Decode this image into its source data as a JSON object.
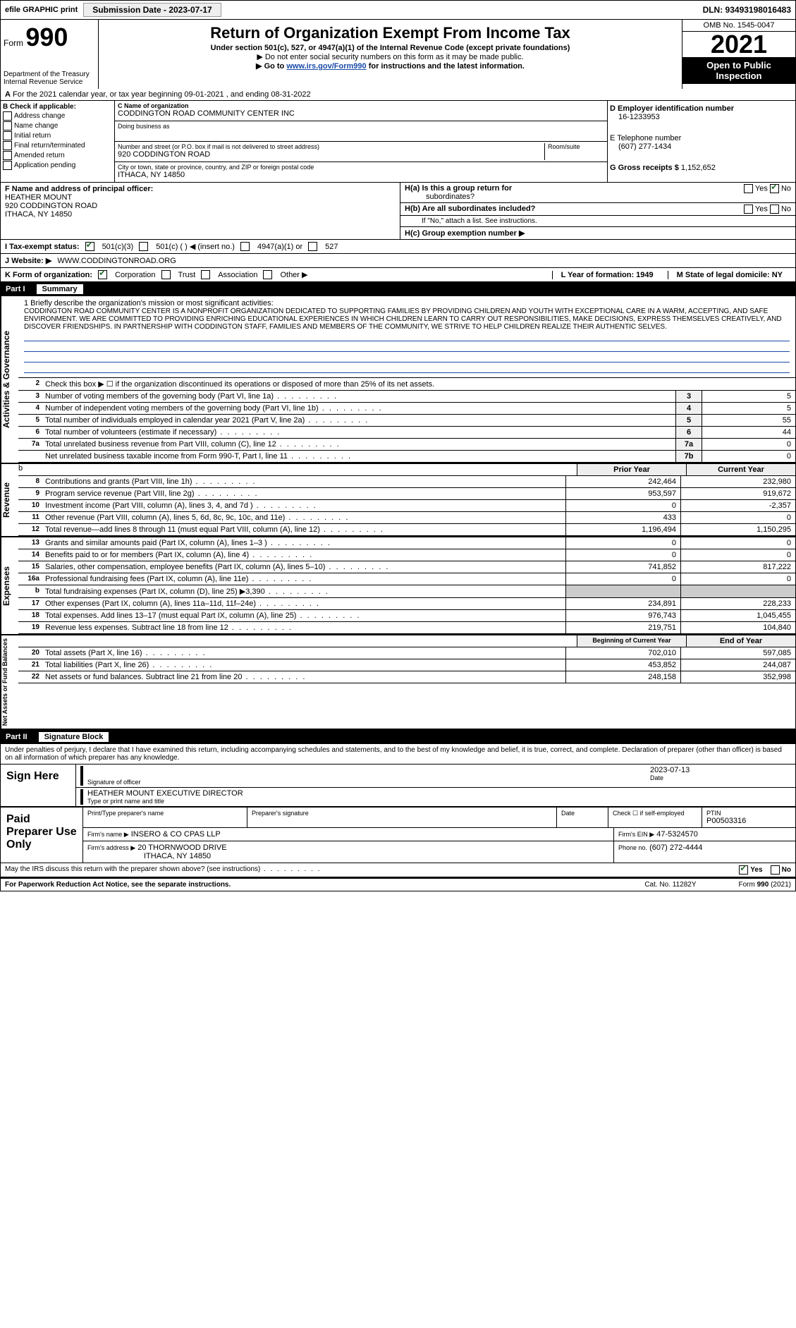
{
  "header": {
    "efile": "efile GRAPHIC print",
    "submission_btn": "Submission Date - 2023-07-17",
    "dln": "DLN: 93493198016483"
  },
  "top": {
    "form_label": "Form",
    "form_number": "990",
    "title": "Return of Organization Exempt From Income Tax",
    "subtitle1": "Under section 501(c), 527, or 4947(a)(1) of the Internal Revenue Code (except private foundations)",
    "subtitle2": "▶ Do not enter social security numbers on this form as it may be made public.",
    "subtitle3_pre": "▶ Go to ",
    "subtitle3_link": "www.irs.gov/Form990",
    "subtitle3_post": " for instructions and the latest information.",
    "dept": "Department of the Treasury",
    "irs": "Internal Revenue Service",
    "omb": "OMB No. 1545-0047",
    "year": "2021",
    "inspection": "Open to Public Inspection"
  },
  "sectionA": {
    "label": "A",
    "text": "For the 2021 calendar year, or tax year beginning 09-01-2021    , and ending 08-31-2022"
  },
  "sectionB": {
    "label": "B Check if applicable:",
    "items": [
      "Address change",
      "Name change",
      "Initial return",
      "Final return/terminated",
      "Amended return",
      "Application pending"
    ]
  },
  "sectionC": {
    "label": "C Name of organization",
    "org_name": "CODDINGTON ROAD COMMUNITY CENTER INC",
    "dba_label": "Doing business as",
    "addr_label": "Number and street (or P.O. box if mail is not delivered to street address)",
    "room_label": "Room/suite",
    "address": "920 CODDINGTON ROAD",
    "city_label": "City or town, state or province, country, and ZIP or foreign postal code",
    "city": "ITHACA, NY  14850"
  },
  "sectionD": {
    "label": "D Employer identification number",
    "ein": "16-1233953",
    "e_label": "E Telephone number",
    "phone": "(607) 277-1434",
    "g_label": "G Gross receipts $",
    "gross": "1,152,652"
  },
  "sectionF": {
    "label": "F  Name and address of principal officer:",
    "name": "HEATHER MOUNT",
    "addr1": "920 CODDINGTON ROAD",
    "addr2": "ITHACA, NY  14850"
  },
  "sectionH": {
    "ha1": "H(a)  Is this a group return for",
    "ha2": "subordinates?",
    "hb": "H(b)  Are all subordinates included?",
    "hb_note": "If \"No,\" attach a list. See instructions.",
    "hc": "H(c)  Group exemption number ▶",
    "yes": "Yes",
    "no": "No"
  },
  "sectionI": {
    "label": "I    Tax-exempt status:",
    "opt1": "501(c)(3)",
    "opt2": "501(c) (  ) ◀ (insert no.)",
    "opt3": "4947(a)(1) or",
    "opt4": "527"
  },
  "sectionJ": {
    "label": "J   Website: ▶",
    "value": " WWW.CODDINGTONROAD.ORG"
  },
  "sectionK": {
    "label": "K Form of organization:",
    "corp": "Corporation",
    "trust": "Trust",
    "assoc": "Association",
    "other": "Other ▶"
  },
  "sectionL": {
    "label": "L Year of formation: 1949"
  },
  "sectionM": {
    "label": "M State of legal domicile: NY"
  },
  "part1": {
    "label": "Part I",
    "title": "Summary"
  },
  "summary": {
    "line1_label": "1   Briefly describe the organization's mission or most significant activities:",
    "mission": "CODDINGTON ROAD COMMUNITY CENTER IS A NONPROFIT ORGANIZATION DEDICATED TO SUPPORTING FAMILIES BY PROVIDING CHILDREN AND YOUTH WITH EXCEPTIONAL CARE IN A WARM, ACCEPTING, AND SAFE ENVIRONMENT. WE ARE COMMITTED TO PROVIDING ENRICHING EDUCATIONAL EXPERIENCES IN WHICH CHILDREN LEARN TO CARRY OUT RESPONSIBILITIES, MAKE DECISIONS, EXPRESS THEMSELVES CREATIVELY, AND DISCOVER FRIENDSHIPS. IN PARTNERSHIP WITH CODDINGTON STAFF, FAMILIES AND MEMBERS OF THE COMMUNITY, WE STRIVE TO HELP CHILDREN REALIZE THEIR AUTHENTIC SELVES.",
    "line2": "Check this box ▶ ☐ if the organization discontinued its operations or disposed of more than 25% of its net assets.",
    "rows_gov": [
      {
        "n": "3",
        "desc": "Number of voting members of the governing body (Part VI, line 1a)",
        "box": "3",
        "val": "5"
      },
      {
        "n": "4",
        "desc": "Number of independent voting members of the governing body (Part VI, line 1b)",
        "box": "4",
        "val": "5"
      },
      {
        "n": "5",
        "desc": "Total number of individuals employed in calendar year 2021 (Part V, line 2a)",
        "box": "5",
        "val": "55"
      },
      {
        "n": "6",
        "desc": "Total number of volunteers (estimate if necessary)",
        "box": "6",
        "val": "44"
      },
      {
        "n": "7a",
        "desc": "Total unrelated business revenue from Part VIII, column (C), line 12",
        "box": "7a",
        "val": "0"
      },
      {
        "n": "",
        "desc": "Net unrelated business taxable income from Form 990-T, Part I, line 11",
        "box": "7b",
        "val": "0"
      }
    ],
    "two_col_hdr": {
      "prior": "Prior Year",
      "current": "Current Year"
    },
    "revenue_rows": [
      {
        "n": "8",
        "desc": "Contributions and grants (Part VIII, line 1h)",
        "prior": "242,464",
        "current": "232,980"
      },
      {
        "n": "9",
        "desc": "Program service revenue (Part VIII, line 2g)",
        "prior": "953,597",
        "current": "919,672"
      },
      {
        "n": "10",
        "desc": "Investment income (Part VIII, column (A), lines 3, 4, and 7d )",
        "prior": "0",
        "current": "-2,357"
      },
      {
        "n": "11",
        "desc": "Other revenue (Part VIII, column (A), lines 5, 6d, 8c, 9c, 10c, and 11e)",
        "prior": "433",
        "current": "0"
      },
      {
        "n": "12",
        "desc": "Total revenue—add lines 8 through 11 (must equal Part VIII, column (A), line 12)",
        "prior": "1,196,494",
        "current": "1,150,295"
      }
    ],
    "expense_rows": [
      {
        "n": "13",
        "desc": "Grants and similar amounts paid (Part IX, column (A), lines 1–3 )",
        "prior": "0",
        "current": "0"
      },
      {
        "n": "14",
        "desc": "Benefits paid to or for members (Part IX, column (A), line 4)",
        "prior": "0",
        "current": "0"
      },
      {
        "n": "15",
        "desc": "Salaries, other compensation, employee benefits (Part IX, column (A), lines 5–10)",
        "prior": "741,852",
        "current": "817,222"
      },
      {
        "n": "16a",
        "desc": "Professional fundraising fees (Part IX, column (A), line 11e)",
        "prior": "0",
        "current": "0"
      },
      {
        "n": "b",
        "desc": "Total fundraising expenses (Part IX, column (D), line 25) ▶3,390",
        "prior": "",
        "current": "",
        "shaded": true
      },
      {
        "n": "17",
        "desc": "Other expenses (Part IX, column (A), lines 11a–11d, 11f–24e)",
        "prior": "234,891",
        "current": "228,233"
      },
      {
        "n": "18",
        "desc": "Total expenses. Add lines 13–17 (must equal Part IX, column (A), line 25)",
        "prior": "976,743",
        "current": "1,045,455"
      },
      {
        "n": "19",
        "desc": "Revenue less expenses. Subtract line 18 from line 12",
        "prior": "219,751",
        "current": "104,840"
      }
    ],
    "net_hdr": {
      "prior": "Beginning of Current Year",
      "current": "End of Year"
    },
    "net_rows": [
      {
        "n": "20",
        "desc": "Total assets (Part X, line 16)",
        "prior": "702,010",
        "current": "597,085"
      },
      {
        "n": "21",
        "desc": "Total liabilities (Part X, line 26)",
        "prior": "453,852",
        "current": "244,087"
      },
      {
        "n": "22",
        "desc": "Net assets or fund balances. Subtract line 21 from line 20",
        "prior": "248,158",
        "current": "352,998"
      }
    ],
    "side_labels": {
      "gov": "Activities & Governance",
      "rev": "Revenue",
      "exp": "Expenses",
      "net": "Net Assets or Fund Balances"
    }
  },
  "part2": {
    "label": "Part II",
    "title": "Signature Block"
  },
  "sig": {
    "perjury": "Under penalties of perjury, I declare that I have examined this return, including accompanying schedules and statements, and to the best of my knowledge and belief, it is true, correct, and complete. Declaration of preparer (other than officer) is based on all information of which preparer has any knowledge.",
    "sign_here": "Sign Here",
    "sig_officer_label": "Signature of officer",
    "date_label": "Date",
    "date_value": "2023-07-13",
    "name_value": "HEATHER MOUNT EXECUTIVE DIRECTOR",
    "name_label": "Type or print name and title",
    "paid": "Paid Preparer Use Only",
    "prep_name_label": "Print/Type preparer's name",
    "prep_sig_label": "Preparer's signature",
    "check_self": "Check ☐ if self-employed",
    "ptin_label": "PTIN",
    "ptin": "P00503316",
    "firm_name_label": "Firm's name    ▶",
    "firm_name": "INSERO & CO CPAS LLP",
    "firm_ein_label": "Firm's EIN ▶",
    "firm_ein": "47-5324570",
    "firm_addr_label": "Firm's address ▶",
    "firm_addr1": "20 THORNWOOD DRIVE",
    "firm_addr2": "ITHACA, NY  14850",
    "phone_label": "Phone no.",
    "phone": "(607) 272-4444",
    "discuss": "May the IRS discuss this return with the preparer shown above? (see instructions)"
  },
  "footer": {
    "paperwork": "For Paperwork Reduction Act Notice, see the separate instructions.",
    "cat": "Cat. No. 11282Y",
    "form": "Form 990 (2021)"
  }
}
